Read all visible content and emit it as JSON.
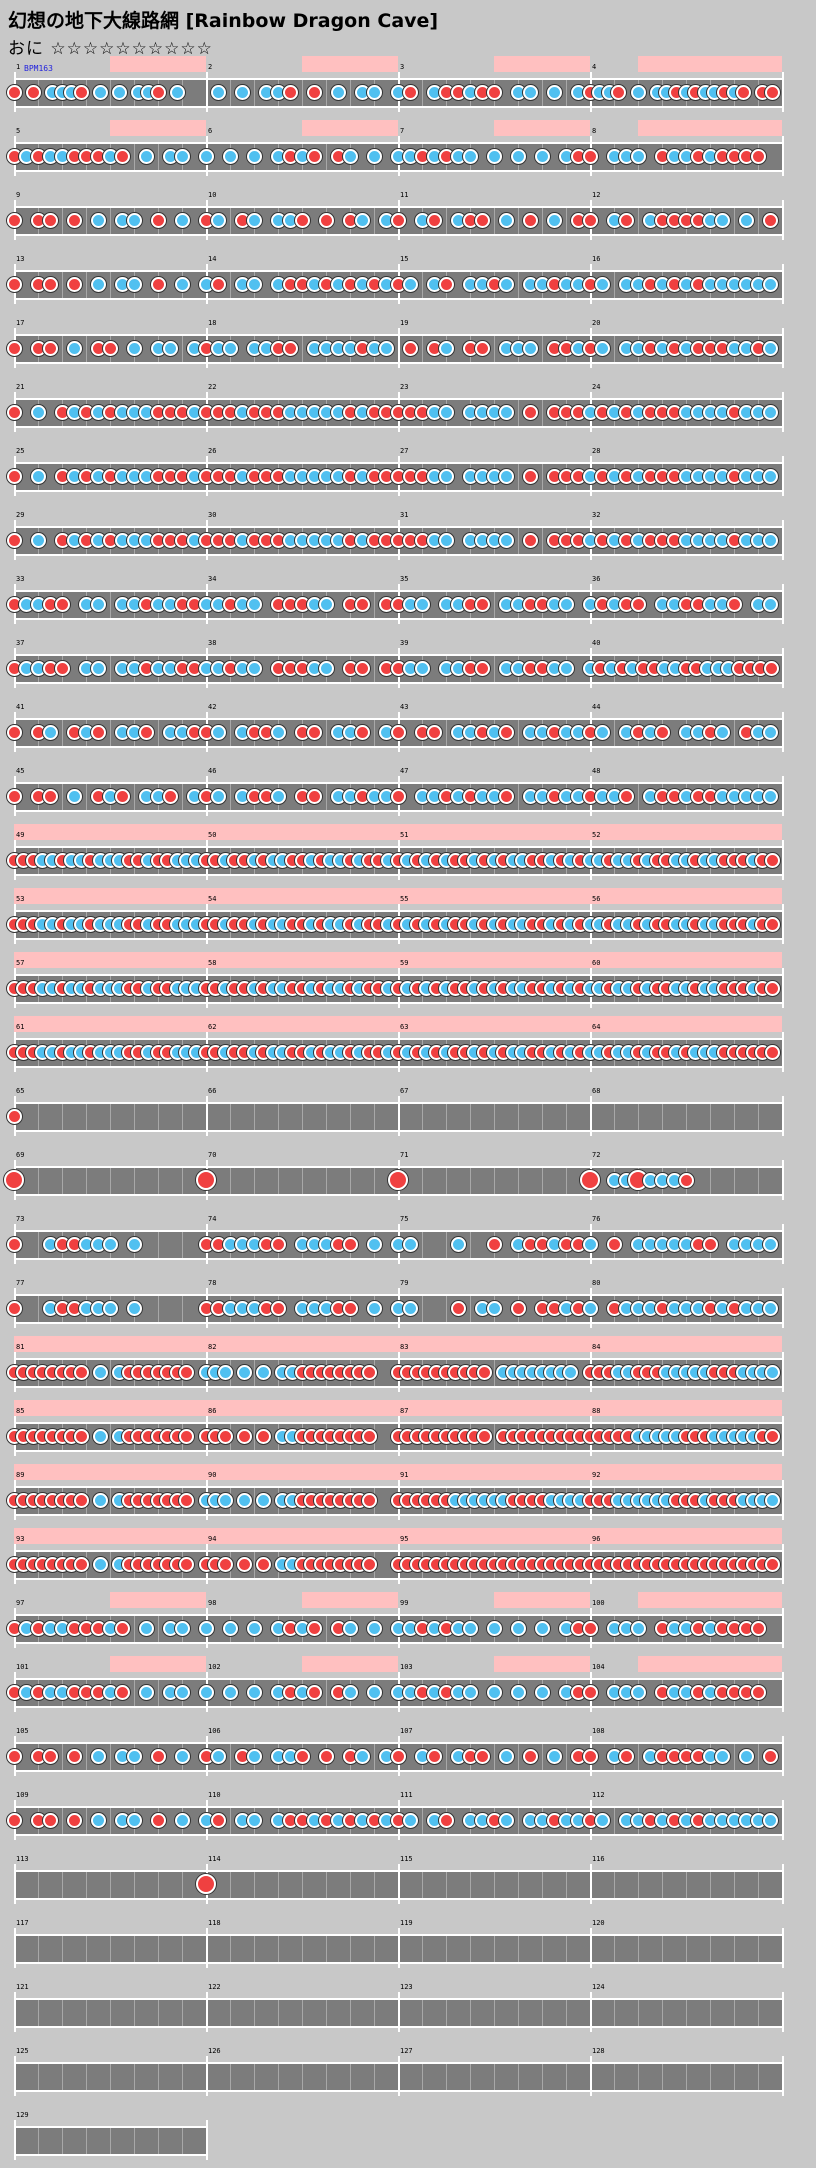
{
  "header": {
    "title": "幻想の地下大線路網 [Rainbow Dragon Cave]",
    "difficulty": "おに ☆☆☆☆☆☆☆☆☆☆",
    "bpm_label": "BPM163"
  },
  "colors": {
    "background": "#c8c8c8",
    "lane": "#7c7c7c",
    "don": "#f04040",
    "ka": "#50c0f0",
    "gogo": "#ffc0c0"
  },
  "measures": [
    {
      "num": "1",
      "notes": "d0d0kkkd0k0k0kkd0k00",
      "gogo": "0011"
    },
    {
      "num": "2",
      "notes": "0k0k0kkd0d0k0kk0",
      "gogo": "0011"
    },
    {
      "num": "3",
      "notes": "kd0kddkdd0kk0k0k",
      "gogo": "0011"
    },
    {
      "num": "4",
      "notes": "dkkd0k0kkdkdkkdkd0dd",
      "gogo": "0111"
    },
    {
      "num": "5",
      "notes": "dkdkkdddkd0k0kk0",
      "gogo": "0011"
    },
    {
      "num": "6",
      "notes": "k0k0k0kdkd0dk0k0",
      "gogo": "0011"
    },
    {
      "num": "7",
      "notes": "kkdkdkk0k0k0k0kd",
      "gogo": "0011"
    },
    {
      "num": "8",
      "notes": "d0kkk0dkkdkdddd0",
      "gogo": "0111"
    },
    {
      "num": "9",
      "notes": "d0dd0d0k0kk0d0k0",
      "gogo": "0000"
    },
    {
      "num": "10",
      "notes": "dk0dk0kkd0d0dk0k",
      "gogo": "0000"
    },
    {
      "num": "11",
      "notes": "d0kd0kdd0k0d0k0d",
      "gogo": "0000"
    },
    {
      "num": "12",
      "notes": "d0kd0kddddkk0k0d",
      "gogo": "0000"
    },
    {
      "num": "13",
      "notes": "d0dd0d0k0kk0d0k0",
      "gogo": "0000"
    },
    {
      "num": "14",
      "notes": "kd0kk0kddkdkdkdk",
      "gogo": "0000"
    },
    {
      "num": "15",
      "notes": "dk0kd0kkdk0kkdkk",
      "gogo": "0000"
    },
    {
      "num": "16",
      "notes": "dk0kkdkdkdkkkkkk",
      "gogo": "0000"
    },
    {
      "num": "17",
      "notes": "d0dd0k0dd0k0kk0k",
      "gogo": "0000"
    },
    {
      "num": "18",
      "notes": "dkk0kkdd0kkkkdkk",
      "gogo": "0000"
    },
    {
      "num": "19",
      "notes": "0d0dk0dd0kkk0ddk",
      "gogo": "0000"
    },
    {
      "num": "20",
      "notes": "dk0kkdkdkdddkkdk",
      "gogo": "0000"
    },
    {
      "num": "21",
      "notes": "d0k0dkdkdkkkdddk",
      "gogo": "0000"
    },
    {
      "num": "22",
      "notes": "dddkdddkkkkkdkdd",
      "gogo": "0000"
    },
    {
      "num": "23",
      "notes": "dddkk0kkkk0d0ddd",
      "gogo": "0000"
    },
    {
      "num": "24",
      "notes": "kdkdkdddkkkkdkkk",
      "gogo": "0000"
    },
    {
      "num": "25",
      "notes": "d0k0dkdkdkkkdddk",
      "gogo": "0000"
    },
    {
      "num": "26",
      "notes": "dddkdddkkkkkdkdd",
      "gogo": "0000"
    },
    {
      "num": "27",
      "notes": "dddkk0kkkk0d0ddd",
      "gogo": "0000"
    },
    {
      "num": "28",
      "notes": "kdkdkdddkkkkdkkk",
      "gogo": "0000"
    },
    {
      "num": "29",
      "notes": "d0k0dkdkdkkkdddk",
      "gogo": "0000"
    },
    {
      "num": "30",
      "notes": "dddkdddkkkkkdkdd",
      "gogo": "0000"
    },
    {
      "num": "31",
      "notes": "dddkk0kkkk0d0ddd",
      "gogo": "0000"
    },
    {
      "num": "32",
      "notes": "kdkdkdddkkkkdkkk",
      "gogo": "0000"
    },
    {
      "num": "33",
      "notes": "dkkdd0kk0kkdkkdd",
      "gogo": "0000"
    },
    {
      "num": "34",
      "notes": "kkdkk0dddkk0dd0d",
      "gogo": "0000"
    },
    {
      "num": "35",
      "notes": "dkk0kkdd0kkddkk0",
      "gogo": "0000"
    },
    {
      "num": "36",
      "notes": "kdkdd0kkddkkd0kk",
      "gogo": "0000"
    },
    {
      "num": "37",
      "notes": "dkkdd0kk0kkdkkdd",
      "gogo": "0000"
    },
    {
      "num": "38",
      "notes": "kkdkk0dddkk0dd0d",
      "gogo": "0000"
    },
    {
      "num": "39",
      "notes": "dkk0kkdd0kkddkk0",
      "gogo": "0000"
    },
    {
      "num": "40",
      "notes": "kdkdkddkkddkkkdddd",
      "gogo": "0000"
    },
    {
      "num": "41",
      "notes": "d0dk0dkd0kkd0kkd",
      "gogo": "0000"
    },
    {
      "num": "42",
      "notes": "dk0kddk0dd0kkd0k",
      "gogo": "0000"
    },
    {
      "num": "43",
      "notes": "d0dd0kkdkd0kkdkk",
      "gogo": "0000"
    },
    {
      "num": "44",
      "notes": "dk0kdkd0kkdk0dkk",
      "gogo": "0000"
    },
    {
      "num": "45",
      "notes": "d0dd0k0dkd0kkd0k",
      "gogo": "0000"
    },
    {
      "num": "46",
      "notes": "dk0kddk0dd0kkdkk",
      "gogo": "0000"
    },
    {
      "num": "47",
      "notes": "d0kkdkdkkd0kkdkk",
      "gogo": "0000"
    },
    {
      "num": "48",
      "notes": "dkkd0kddkddkkkkk",
      "gogo": "0000"
    },
    {
      "num": "49",
      "notes": "dddkkdkkdkkkddkddkkk",
      "gogo": "1111"
    },
    {
      "num": "50",
      "notes": "ddkddkdkkddkdkkdkddk",
      "gogo": "1111"
    },
    {
      "num": "51",
      "notes": "dkdkdkddkdkdkkddkdkd",
      "gogo": "1111"
    },
    {
      "num": "52",
      "notes": "kkdkkdkddkkdkkdddkdd",
      "gogo": "1111"
    },
    {
      "num": "53",
      "notes": "dddkkdkkdkkkddkddkkk",
      "gogo": "1111"
    },
    {
      "num": "54",
      "notes": "ddkddkdkkddkdkkdkddk",
      "gogo": "1111"
    },
    {
      "num": "55",
      "notes": "dkdkdkddkdkdkkddkdkd",
      "gogo": "1111"
    },
    {
      "num": "56",
      "notes": "kkdkkdkddkkdkkdddkdd",
      "gogo": "1111"
    },
    {
      "num": "57",
      "notes": "dddkkdkkdkkkddkddkkk",
      "gogo": "1111"
    },
    {
      "num": "58",
      "notes": "ddkddkdkkddkdkkdkddk",
      "gogo": "1111"
    },
    {
      "num": "59",
      "notes": "dkdkdkddkdkdkkddkdkd",
      "gogo": "1111"
    },
    {
      "num": "60",
      "notes": "kkdkkdkddkkdkkdddkdd",
      "gogo": "1111"
    },
    {
      "num": "61",
      "notes": "dddkkdkkdkkkddkddkkk",
      "gogo": "1111"
    },
    {
      "num": "62",
      "notes": "ddkddkdkkddkdkkdkddk",
      "gogo": "1111"
    },
    {
      "num": "63",
      "notes": "dkdkdkddkdkdkkddkdkd",
      "gogo": "1111"
    },
    {
      "num": "64",
      "notes": "kkdkkdkddkdkkkdddddd",
      "gogo": "1111"
    },
    {
      "num": "65",
      "notes": "d0000000",
      "gogo": "0000"
    },
    {
      "num": "66",
      "notes": "00000000",
      "gogo": "0000"
    },
    {
      "num": "67",
      "notes": "00000000",
      "gogo": "0000"
    },
    {
      "num": "68",
      "notes": "00000000",
      "gogo": "0000"
    },
    {
      "num": "69",
      "notes": "D0000000",
      "gogo": "0000"
    },
    {
      "num": "70",
      "notes": "D0000000",
      "gogo": "0000"
    },
    {
      "num": "71",
      "notes": "D0000000",
      "gogo": "0000"
    },
    {
      "num": "72",
      "notes": "D0kkDkkkd0000000",
      "gogo": "0000"
    },
    {
      "num": "73",
      "notes": "d00kddkkk0k00000",
      "gogo": "0000"
    },
    {
      "num": "74",
      "notes": "ddkkkdd0kkkdd0k0",
      "gogo": "0000"
    },
    {
      "num": "75",
      "notes": "kk000k00d0kddkdd",
      "gogo": "0000"
    },
    {
      "num": "76",
      "notes": "k0d0kkkkkdd0kkkk",
      "gogo": "0000"
    },
    {
      "num": "77",
      "notes": "d00kddkkk0k00000",
      "gogo": "0000"
    },
    {
      "num": "78",
      "notes": "ddkkkdd0kkkdd0k0",
      "gogo": "0000"
    },
    {
      "num": "79",
      "notes": "kk000d0kk0d0ddkd",
      "gogo": "0000"
    },
    {
      "num": "80",
      "notes": "k0dkkkdkkkdkdkkk",
      "gogo": "0000"
    },
    {
      "num": "81",
      "notes": "dddddddd0k0kddddddd0",
      "gogo": "1111"
    },
    {
      "num": "82",
      "notes": "kkk0k0k0kkdddddddd00",
      "gogo": "1111"
    },
    {
      "num": "83",
      "notes": "dddddddddd0kkkkkkkk0",
      "gogo": "1111"
    },
    {
      "num": "84",
      "notes": "dddkkdddkkkkkdddkkkk",
      "gogo": "1111"
    },
    {
      "num": "85",
      "notes": "dddddddd0k0kddddddd0",
      "gogo": "1111"
    },
    {
      "num": "86",
      "notes": "ddd0d0d0kkdddddddd00",
      "gogo": "1111"
    },
    {
      "num": "87",
      "notes": "dddddddddd0ddddddddd",
      "gogo": "1111"
    },
    {
      "num": "88",
      "notes": "dddddkkkkkdddkkkkkdd",
      "gogo": "1111"
    },
    {
      "num": "89",
      "notes": "dddddddd0k0kddddddd0",
      "gogo": "1111"
    },
    {
      "num": "90",
      "notes": "kkk0k0k0kkdddddddd00",
      "gogo": "1111"
    },
    {
      "num": "91",
      "notes": "ddddddkkkkkkddddkkkk",
      "gogo": "1111"
    },
    {
      "num": "92",
      "notes": "dddkkkkkkdddkdddkkkk",
      "gogo": "1111"
    },
    {
      "num": "93",
      "notes": "dddddddd0k0kddddddd0",
      "gogo": "1111"
    },
    {
      "num": "94",
      "notes": "ddd0d0d0kkdddddddd00",
      "gogo": "1111"
    },
    {
      "num": "95",
      "notes": "dddddddddddddddddddd",
      "gogo": "1111"
    },
    {
      "num": "96",
      "notes": "dddddddddddddddddddd",
      "gogo": "1111"
    },
    {
      "num": "97",
      "notes": "dkdkkdddkd0k0kk0",
      "gogo": "0011"
    },
    {
      "num": "98",
      "notes": "k0k0k0kdkd0dk0k0",
      "gogo": "0011"
    },
    {
      "num": "99",
      "notes": "kkdkdkk0k0k0k0kd",
      "gogo": "0011"
    },
    {
      "num": "100",
      "notes": "d0kkk0dkkdkdddd0",
      "gogo": "0111"
    },
    {
      "num": "101",
      "notes": "dkdkkdddkd0k0kk0",
      "gogo": "0011"
    },
    {
      "num": "102",
      "notes": "k0k0k0kdkd0dk0k0",
      "gogo": "0011"
    },
    {
      "num": "103",
      "notes": "kkdkdkk0k0k0k0kd",
      "gogo": "0011"
    },
    {
      "num": "104",
      "notes": "d0kkk0dkkdkdddd0",
      "gogo": "0111"
    },
    {
      "num": "105",
      "notes": "d0dd0d0k0kk0d0k0",
      "gogo": "0000"
    },
    {
      "num": "106",
      "notes": "dk0dk0kkd0d0dk0k",
      "gogo": "0000"
    },
    {
      "num": "107",
      "notes": "d0kd0kdd0k0d0k0d",
      "gogo": "0000"
    },
    {
      "num": "108",
      "notes": "d0kd0kddddkk0k0d",
      "gogo": "0000"
    },
    {
      "num": "109",
      "notes": "d0dd0d0k0kk0d0k0",
      "gogo": "0000"
    },
    {
      "num": "110",
      "notes": "kd0kk0kddkdkdkdk",
      "gogo": "0000"
    },
    {
      "num": "111",
      "notes": "dk0kd0kkdk0kkdkk",
      "gogo": "0000"
    },
    {
      "num": "112",
      "notes": "dk0kkdkdkdkkkkkk",
      "gogo": "0000"
    },
    {
      "num": "113",
      "notes": "00000000",
      "gogo": "0000"
    },
    {
      "num": "114",
      "notes": "D0000000",
      "gogo": "0000"
    },
    {
      "num": "115",
      "notes": "00000000",
      "gogo": "0000"
    },
    {
      "num": "116",
      "notes": "00000000",
      "gogo": "0000"
    },
    {
      "num": "117",
      "notes": "00000000",
      "gogo": "0000"
    },
    {
      "num": "118",
      "notes": "00000000",
      "gogo": "0000"
    },
    {
      "num": "119",
      "notes": "00000000",
      "gogo": "0000"
    },
    {
      "num": "120",
      "notes": "00000000",
      "gogo": "0000"
    },
    {
      "num": "121",
      "notes": "00000000",
      "gogo": "0000"
    },
    {
      "num": "122",
      "notes": "00000000",
      "gogo": "0000"
    },
    {
      "num": "123",
      "notes": "00000000",
      "gogo": "0000"
    },
    {
      "num": "124",
      "notes": "00000000",
      "gogo": "0000"
    },
    {
      "num": "125",
      "notes": "00000000",
      "gogo": "0000"
    },
    {
      "num": "126",
      "notes": "00000000",
      "gogo": "0000"
    },
    {
      "num": "127",
      "notes": "00000000",
      "gogo": "0000"
    },
    {
      "num": "128",
      "notes": "00000000",
      "gogo": "0000"
    },
    {
      "num": "129",
      "notes": "00000000",
      "gogo": "0000"
    }
  ]
}
